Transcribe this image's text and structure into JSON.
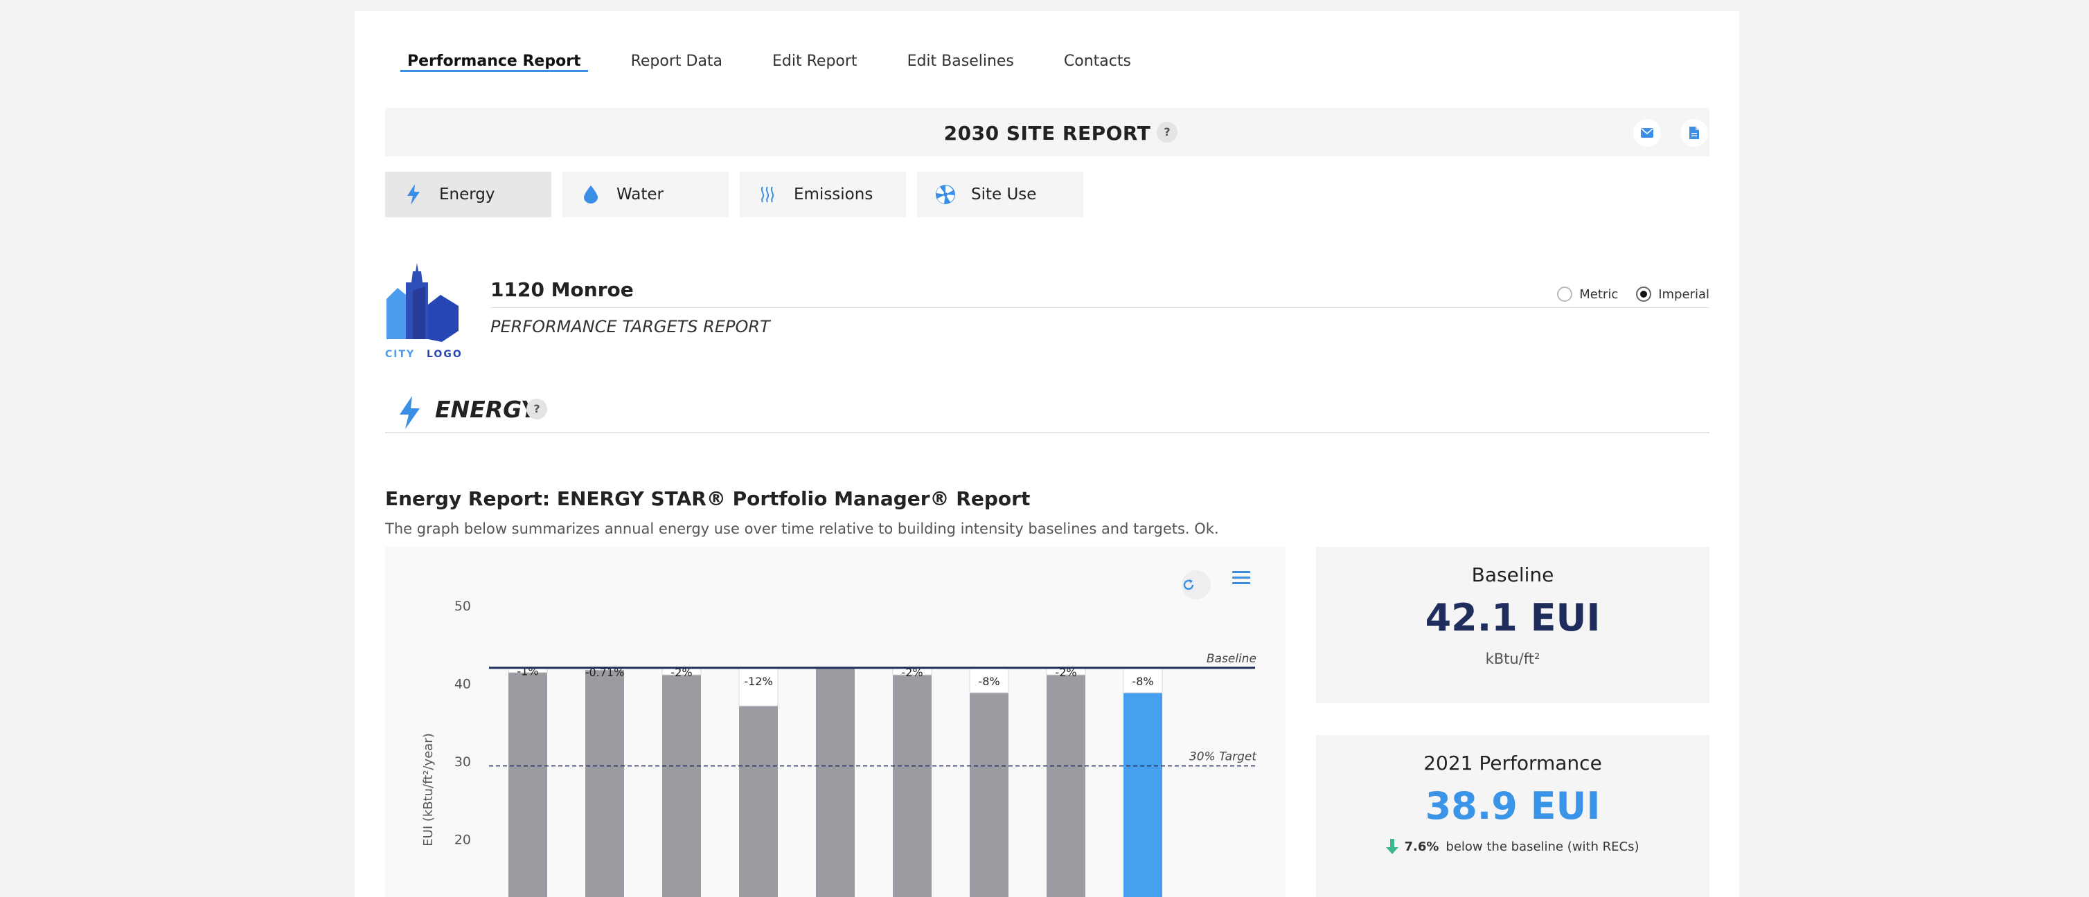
{
  "tabs": [
    {
      "label": "Performance Report",
      "active": true
    },
    {
      "label": "Report Data",
      "active": false
    },
    {
      "label": "Edit Report",
      "active": false
    },
    {
      "label": "Edit Baselines",
      "active": false
    },
    {
      "label": "Contacts",
      "active": false
    }
  ],
  "report_bar": {
    "title": "2030 SITE REPORT",
    "help": "?",
    "email_icon": "envelope-icon",
    "file_icon": "document-icon"
  },
  "categories": [
    {
      "label": "Energy",
      "icon": "lightning-icon",
      "active": true
    },
    {
      "label": "Water",
      "icon": "water-drop-icon",
      "active": false
    },
    {
      "label": "Emissions",
      "icon": "emissions-icon",
      "active": false
    },
    {
      "label": "Site Use",
      "icon": "site-use-icon",
      "active": false
    }
  ],
  "logo": {
    "word1": "CITY",
    "word2": "LOGO"
  },
  "building": {
    "name": "1120 Monroe",
    "subtitle": "PERFORMANCE TARGETS REPORT"
  },
  "units": {
    "metric": "Metric",
    "imperial": "Imperial",
    "selected": "Imperial"
  },
  "section": {
    "title": "ENERGY",
    "help": "?"
  },
  "energy_report": {
    "title": "Energy Report: ENERGY STAR® Portfolio Manager® Report",
    "description": "The graph below summarizes annual energy use over time relative to building intensity baselines and targets. Ok."
  },
  "chart_data": {
    "type": "bar",
    "ylabel": "EUI (kBtu/ft²/year)",
    "yticks": [
      20,
      30,
      40,
      50
    ],
    "ylim": [
      13,
      50
    ],
    "values": [
      41.5,
      41.8,
      41.2,
      37.2,
      42.1,
      41.2,
      38.9,
      41.2,
      38.9
    ],
    "labels": [
      "-1%",
      "-0.71%",
      "-2%",
      "-12%",
      "",
      "-2%",
      "-8%",
      "-2%",
      "-8%"
    ],
    "highlight_index": 8,
    "baseline": {
      "value": 42.1,
      "label": "Baseline"
    },
    "target": {
      "value": 29.5,
      "label": "30% Target"
    },
    "colors": {
      "bar": "#9b9ca1",
      "highlight": "#47a0ef",
      "baseline": "#1f2d5c",
      "target": "#1f2d5c"
    }
  },
  "baseline_card": {
    "label": "Baseline",
    "value": "42.1 EUI",
    "unit": "kBtu/ft²"
  },
  "performance_card": {
    "label": "2021 Performance",
    "value": "38.9 EUI",
    "pct": "7.6%",
    "note": "below the baseline (with RECs)"
  },
  "colors": {
    "accent": "#3a8ee6",
    "dark_blue": "#1f2d5c",
    "green": "#3cb88e"
  }
}
